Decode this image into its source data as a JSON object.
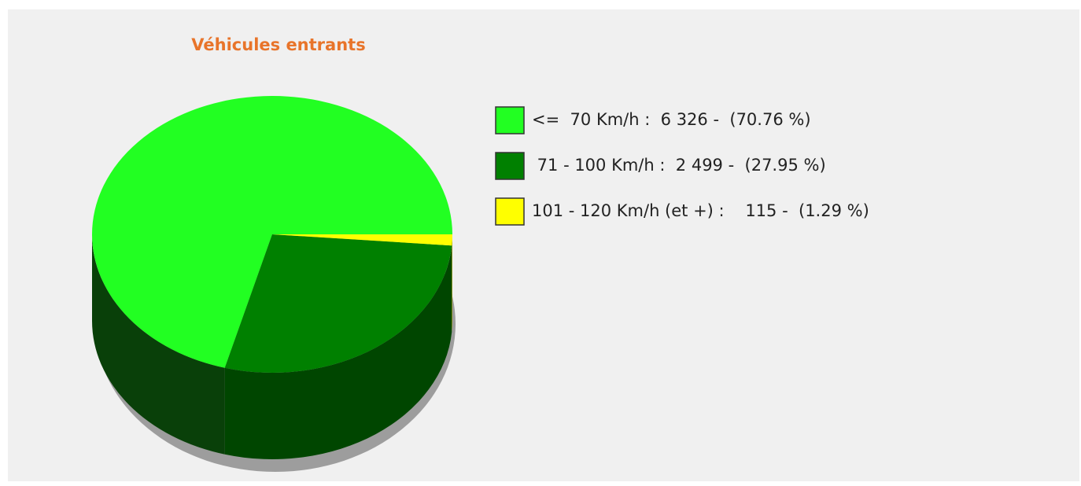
{
  "chart_data": {
    "type": "pie",
    "title": "Véhicules entrants",
    "values": [
      6326,
      2499,
      115
    ],
    "colors": [
      "#22ff22",
      "#008000",
      "#ffff00"
    ],
    "legend": [
      "<=  70 Km/h :  6 326 -  (70.76 %)",
      " 71 - 100 Km/h :  2 499 -  (27.95 %)",
      "101 - 120 Km/h (et +) :    115 -  (1.29 %)"
    ]
  }
}
